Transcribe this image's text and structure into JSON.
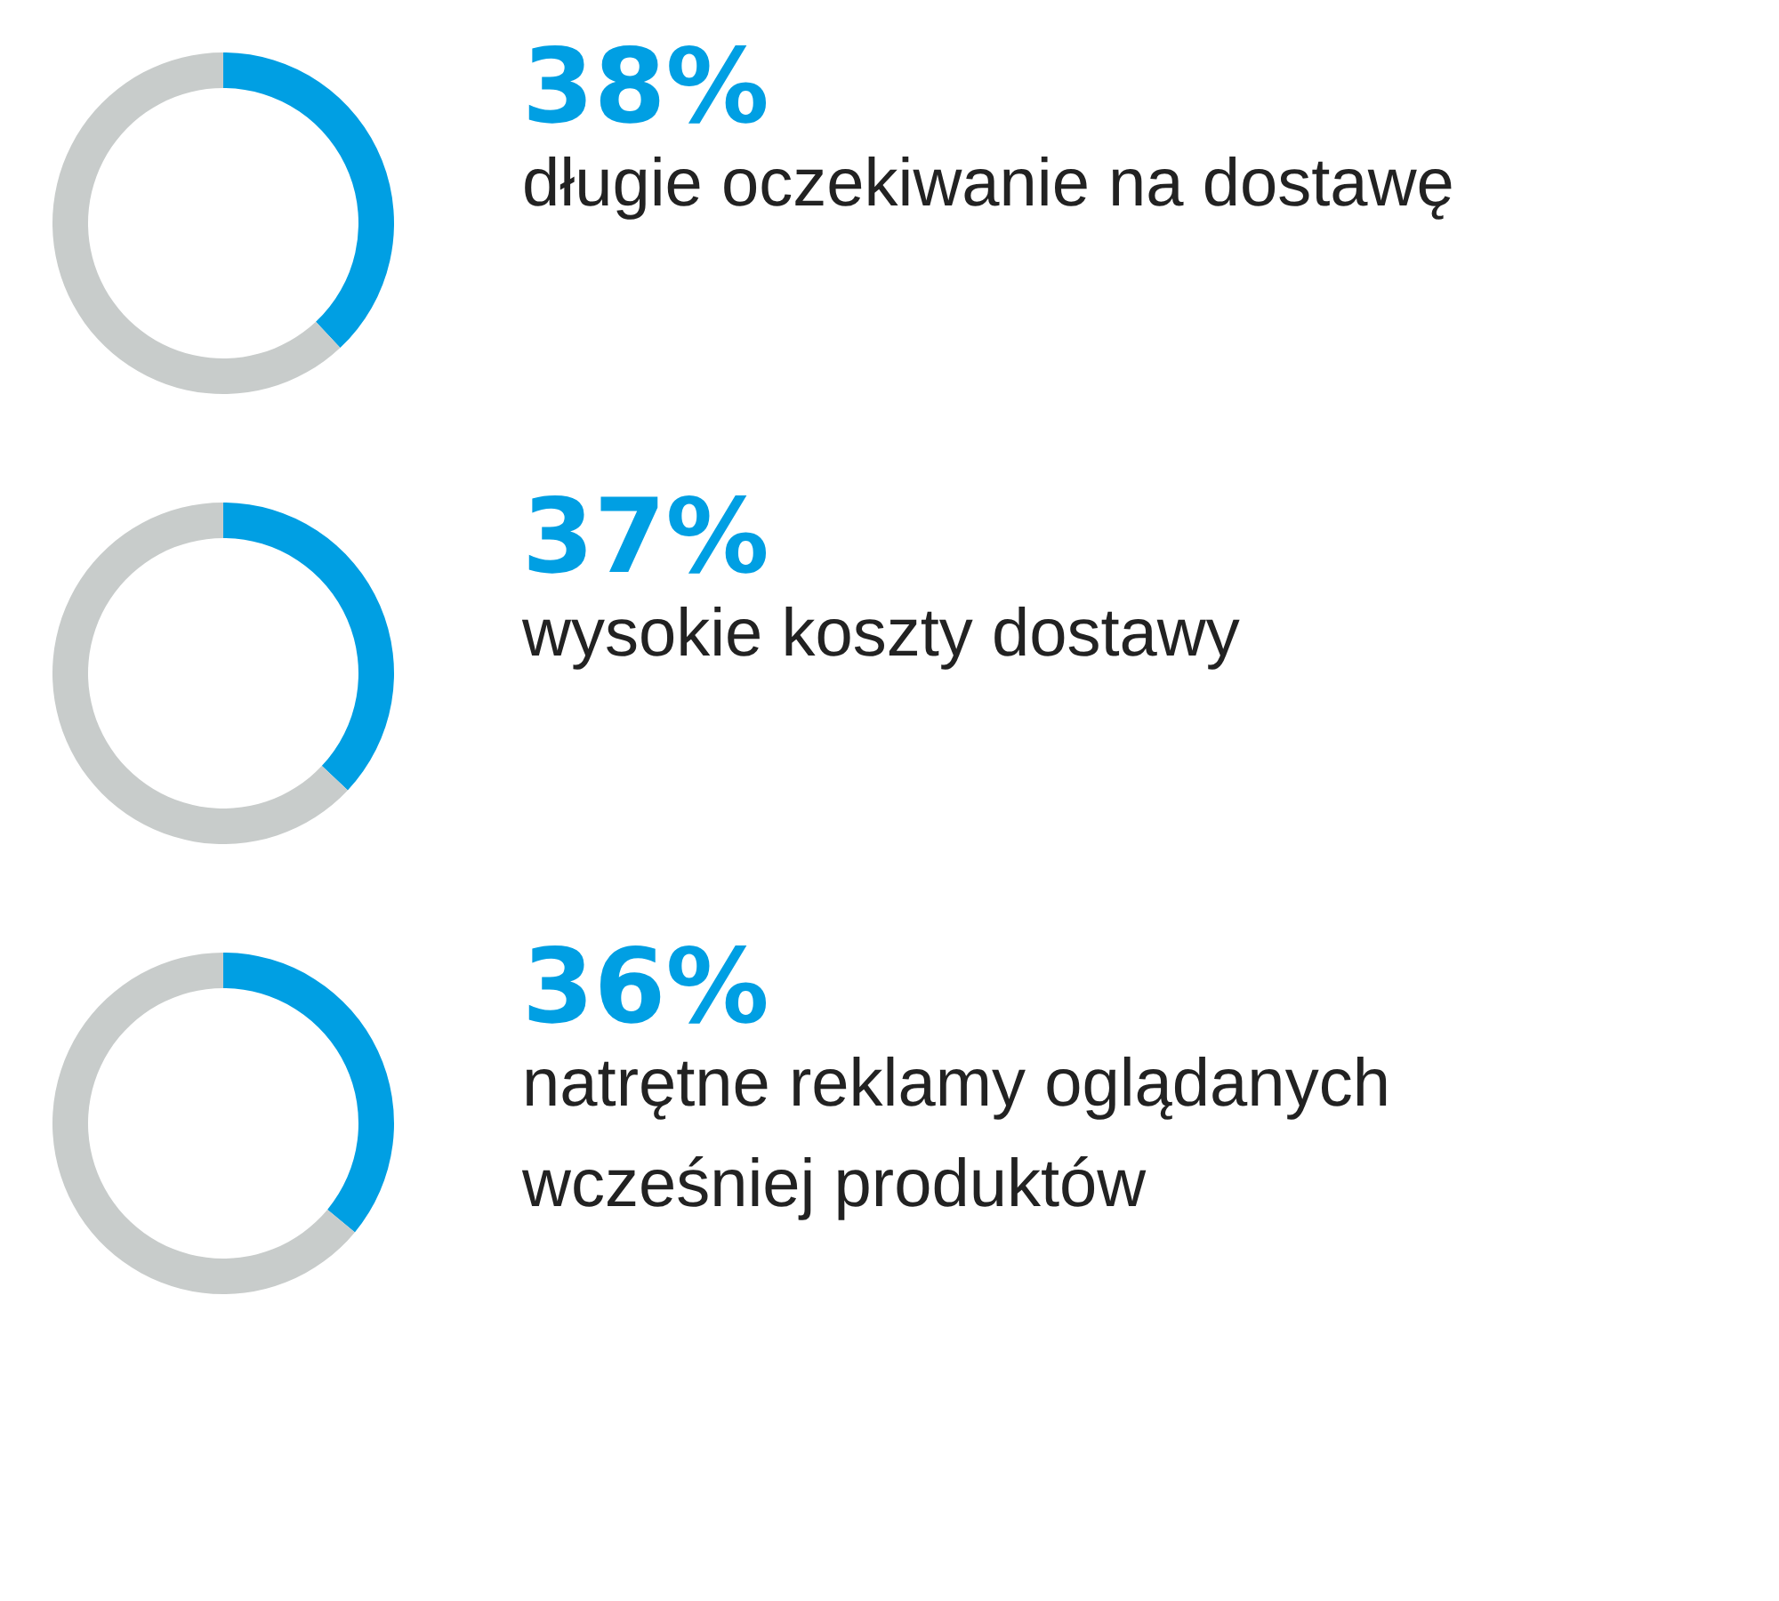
{
  "chart_data": [
    {
      "type": "donut",
      "title": "długie oczekiwanie na dostawę",
      "categories": [
        null,
        null
      ],
      "values": [
        38,
        62
      ],
      "colors": [
        "#009fe3",
        "#c8cccb"
      ],
      "value_labels": [
        "38%",
        null
      ]
    },
    {
      "type": "donut",
      "title": "wysokie koszty dostawy",
      "categories": [
        null,
        null
      ],
      "values": [
        37,
        63
      ],
      "colors": [
        "#009fe3",
        "#c8cccb"
      ],
      "value_labels": [
        "37%",
        null
      ]
    },
    {
      "type": "donut",
      "title": "natrętne reklamy oglądanych\nwcześniej produktów",
      "categories": [
        null,
        null
      ],
      "values": [
        36,
        64
      ],
      "colors": [
        "#009fe3",
        "#c8cccb"
      ],
      "value_labels": [
        "36%",
        null
      ]
    }
  ]
}
